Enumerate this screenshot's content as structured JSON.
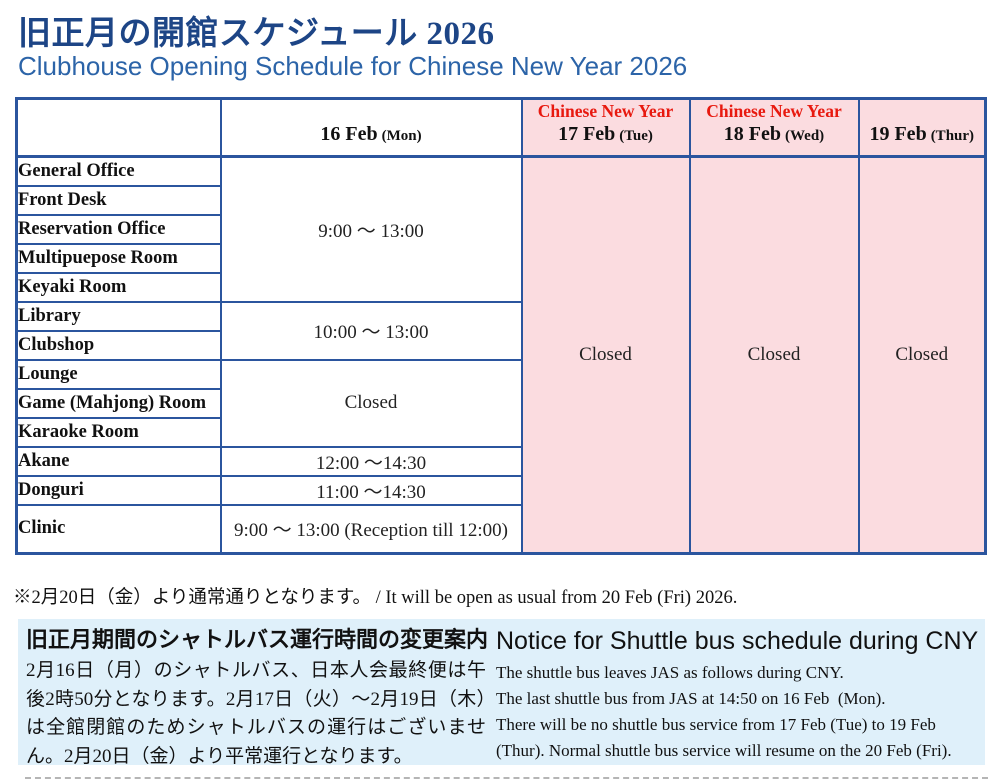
{
  "page": {
    "title_ja": "旧正月の開館スケジュール 2026",
    "title_en": "Clubhouse Opening Schedule for Chinese New Year 2026"
  },
  "table": {
    "header": {
      "col_16feb": {
        "date": "16 Feb",
        "dow": "(Mon)"
      },
      "col_17feb": {
        "cny": "Chinese New Year",
        "date": "17 Feb",
        "dow": "(Tue)"
      },
      "col_18feb": {
        "cny": "Chinese New Year",
        "date": "18 Feb",
        "dow": "(Wed)"
      },
      "col_19feb": {
        "date": "19 Feb",
        "dow": "(Thur)"
      }
    },
    "row_groups": [
      {
        "rooms": [
          "General Office",
          "Front Desk",
          "Reservation Office",
          "Multipuepose Room",
          "Keyaki Room"
        ],
        "hours_16feb": "9:00 ～ 13:00"
      },
      {
        "rooms": [
          "Library",
          "Clubshop"
        ],
        "hours_16feb": "10:00 ～ 13:00"
      },
      {
        "rooms": [
          "Lounge",
          "Game (Mahjong) Room",
          "Karaoke Room"
        ],
        "hours_16feb": "Closed"
      },
      {
        "rooms": [
          "Akane"
        ],
        "hours_16feb": "12:00 ～14:30"
      },
      {
        "rooms": [
          "Donguri"
        ],
        "hours_16feb": "11:00 ～14:30"
      },
      {
        "rooms": [
          "Clinic"
        ],
        "hours_16feb": "9:00 ～ 13:00 (Reception till 12:00)",
        "tall": true
      }
    ],
    "closed_17feb": "Closed",
    "closed_18feb": "Closed",
    "closed_19feb": "Closed"
  },
  "note": "※2月20日（金）より通常通りとなります。 / It will be open as usual from 20 Feb (Fri) 2026.",
  "shuttle_notice": {
    "ja_title": "旧正月期間のシャトルバス運行時間の変更案内",
    "ja_body": "2月16日（月）のシャトルバス、日本人会最終便は午後2時50分となります。2月17日（火）～2月19日（木）は全館閉館のためシャトルバスの運行はございません。2月20日（金）より平常運行となります。",
    "en_title": "Notice for Shuttle bus schedule during CNY",
    "en_body_lines": [
      "The shuttle bus leaves JAS as follows during CNY.",
      "The last shuttle bus from JAS at 14:50 on 16 Feb  (Mon).",
      "There will be no shuttle bus service from 17 Feb (Tue) to 19 Feb",
      "(Thur). Normal shuttle bus service will resume on the 20 Feb (Fri)."
    ]
  },
  "colors": {
    "border_blue": "#2b559e",
    "title_navy": "#1d4586",
    "subtitle_blue": "#2c64a8",
    "cny_red": "#e8190f",
    "pink_bg": "#fbdce0",
    "notice_bg": "#dff0fa",
    "dash_gray": "#b5b5b5"
  }
}
